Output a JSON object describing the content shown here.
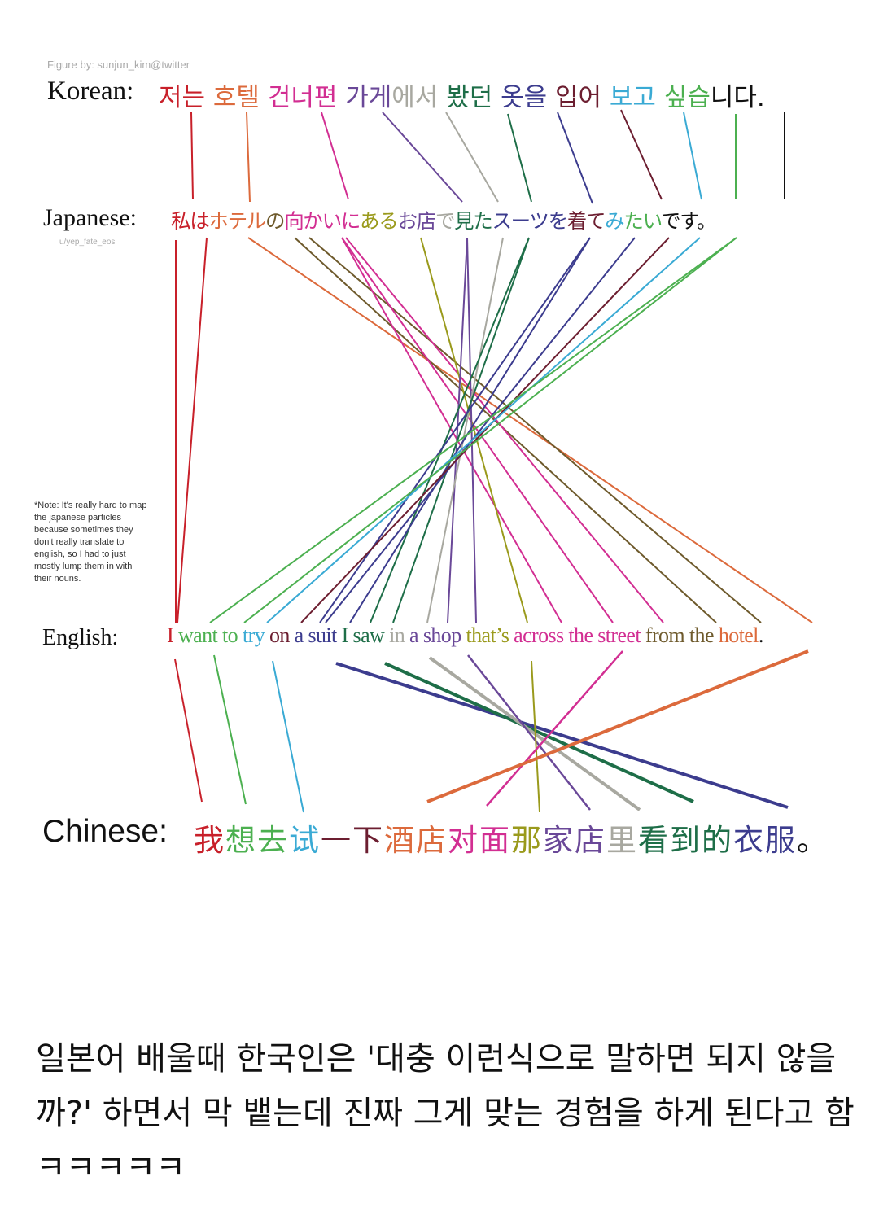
{
  "diagram": {
    "credit": "Figure by: sunjun_kim@twitter",
    "japanese_credit": "u/yep_fate_eos",
    "note": "*Note: It's really hard to map the japanese particles because sometimes they don't really translate to english, so I had to just mostly lump them in with their nouns.",
    "colors": {
      "red": "#c8202a",
      "orange": "#dc6a3c",
      "pink": "#d22e92",
      "purple": "#6a4898",
      "gray": "#a8a8a0",
      "darkgreen": "#1e6e48",
      "navy": "#3c3c8e",
      "maroon": "#6c1e30",
      "lightblue": "#3aaad4",
      "green": "#4cb050",
      "olive": "#9a9a1c",
      "brown": "#6e5a2c",
      "black": "#111111"
    },
    "korean": {
      "label": "Korean:",
      "segments": [
        {
          "text": "저는",
          "color": "red"
        },
        {
          "text": " "
        },
        {
          "text": "호텔",
          "color": "orange"
        },
        {
          "text": " "
        },
        {
          "text": "건너편",
          "color": "pink"
        },
        {
          "text": " "
        },
        {
          "text": "가게",
          "color": "purple"
        },
        {
          "text": "에서",
          "color": "gray"
        },
        {
          "text": " "
        },
        {
          "text": "봤던",
          "color": "darkgreen"
        },
        {
          "text": " "
        },
        {
          "text": "옷을",
          "color": "navy"
        },
        {
          "text": " "
        },
        {
          "text": "입어",
          "color": "maroon"
        },
        {
          "text": " "
        },
        {
          "text": "보고",
          "color": "lightblue"
        },
        {
          "text": " "
        },
        {
          "text": "싶습",
          "color": "green"
        },
        {
          "text": "니다.",
          "color": "black"
        }
      ]
    },
    "japanese": {
      "label": "Japanese:",
      "segments": [
        {
          "text": "私は",
          "color": "red"
        },
        {
          "text": "ホテル",
          "color": "orange"
        },
        {
          "text": "の",
          "color": "brown"
        },
        {
          "text": "向かいに",
          "color": "pink"
        },
        {
          "text": "ある",
          "color": "olive"
        },
        {
          "text": "お店",
          "color": "purple"
        },
        {
          "text": "で",
          "color": "gray"
        },
        {
          "text": "見た",
          "color": "darkgreen"
        },
        {
          "text": "スーツを",
          "color": "navy"
        },
        {
          "text": "着て",
          "color": "maroon"
        },
        {
          "text": "み",
          "color": "lightblue"
        },
        {
          "text": "たい",
          "color": "green"
        },
        {
          "text": "です。",
          "color": "black"
        }
      ]
    },
    "english": {
      "label": "English:",
      "segments": [
        {
          "text": "I",
          "color": "red"
        },
        {
          "text": " "
        },
        {
          "text": "want to",
          "color": "green"
        },
        {
          "text": " "
        },
        {
          "text": "try",
          "color": "lightblue"
        },
        {
          "text": " "
        },
        {
          "text": "on",
          "color": "maroon"
        },
        {
          "text": " "
        },
        {
          "text": "a suit",
          "color": "navy"
        },
        {
          "text": " "
        },
        {
          "text": "I saw",
          "color": "darkgreen"
        },
        {
          "text": " "
        },
        {
          "text": "in",
          "color": "gray"
        },
        {
          "text": " "
        },
        {
          "text": "a shop",
          "color": "purple"
        },
        {
          "text": " "
        },
        {
          "text": "that’s",
          "color": "olive"
        },
        {
          "text": " "
        },
        {
          "text": "across the street",
          "color": "pink"
        },
        {
          "text": " "
        },
        {
          "text": "from the",
          "color": "brown"
        },
        {
          "text": " "
        },
        {
          "text": "hotel",
          "color": "orange"
        },
        {
          "text": ".",
          "color": "black"
        }
      ]
    },
    "chinese": {
      "label": "Chinese:",
      "segments": [
        {
          "text": "我",
          "color": "red"
        },
        {
          "text": "想去",
          "color": "green"
        },
        {
          "text": "试",
          "color": "lightblue"
        },
        {
          "text": "一下",
          "color": "maroon"
        },
        {
          "text": "酒店",
          "color": "orange"
        },
        {
          "text": "对面",
          "color": "pink"
        },
        {
          "text": "那",
          "color": "olive"
        },
        {
          "text": "家店",
          "color": "purple"
        },
        {
          "text": "里",
          "color": "gray"
        },
        {
          "text": "看到的",
          "color": "darkgreen"
        },
        {
          "text": "衣服",
          "color": "navy"
        },
        {
          "text": "。",
          "color": "black"
        }
      ]
    }
  },
  "caption": "일본어 배울때 한국인은 '대충 이런식으로 말하면 되지 않을까?' 하면서 막 뱉는데 진짜 그게 맞는 경험을 하게 된다고 함ㅋㅋㅋㅋㅋ"
}
